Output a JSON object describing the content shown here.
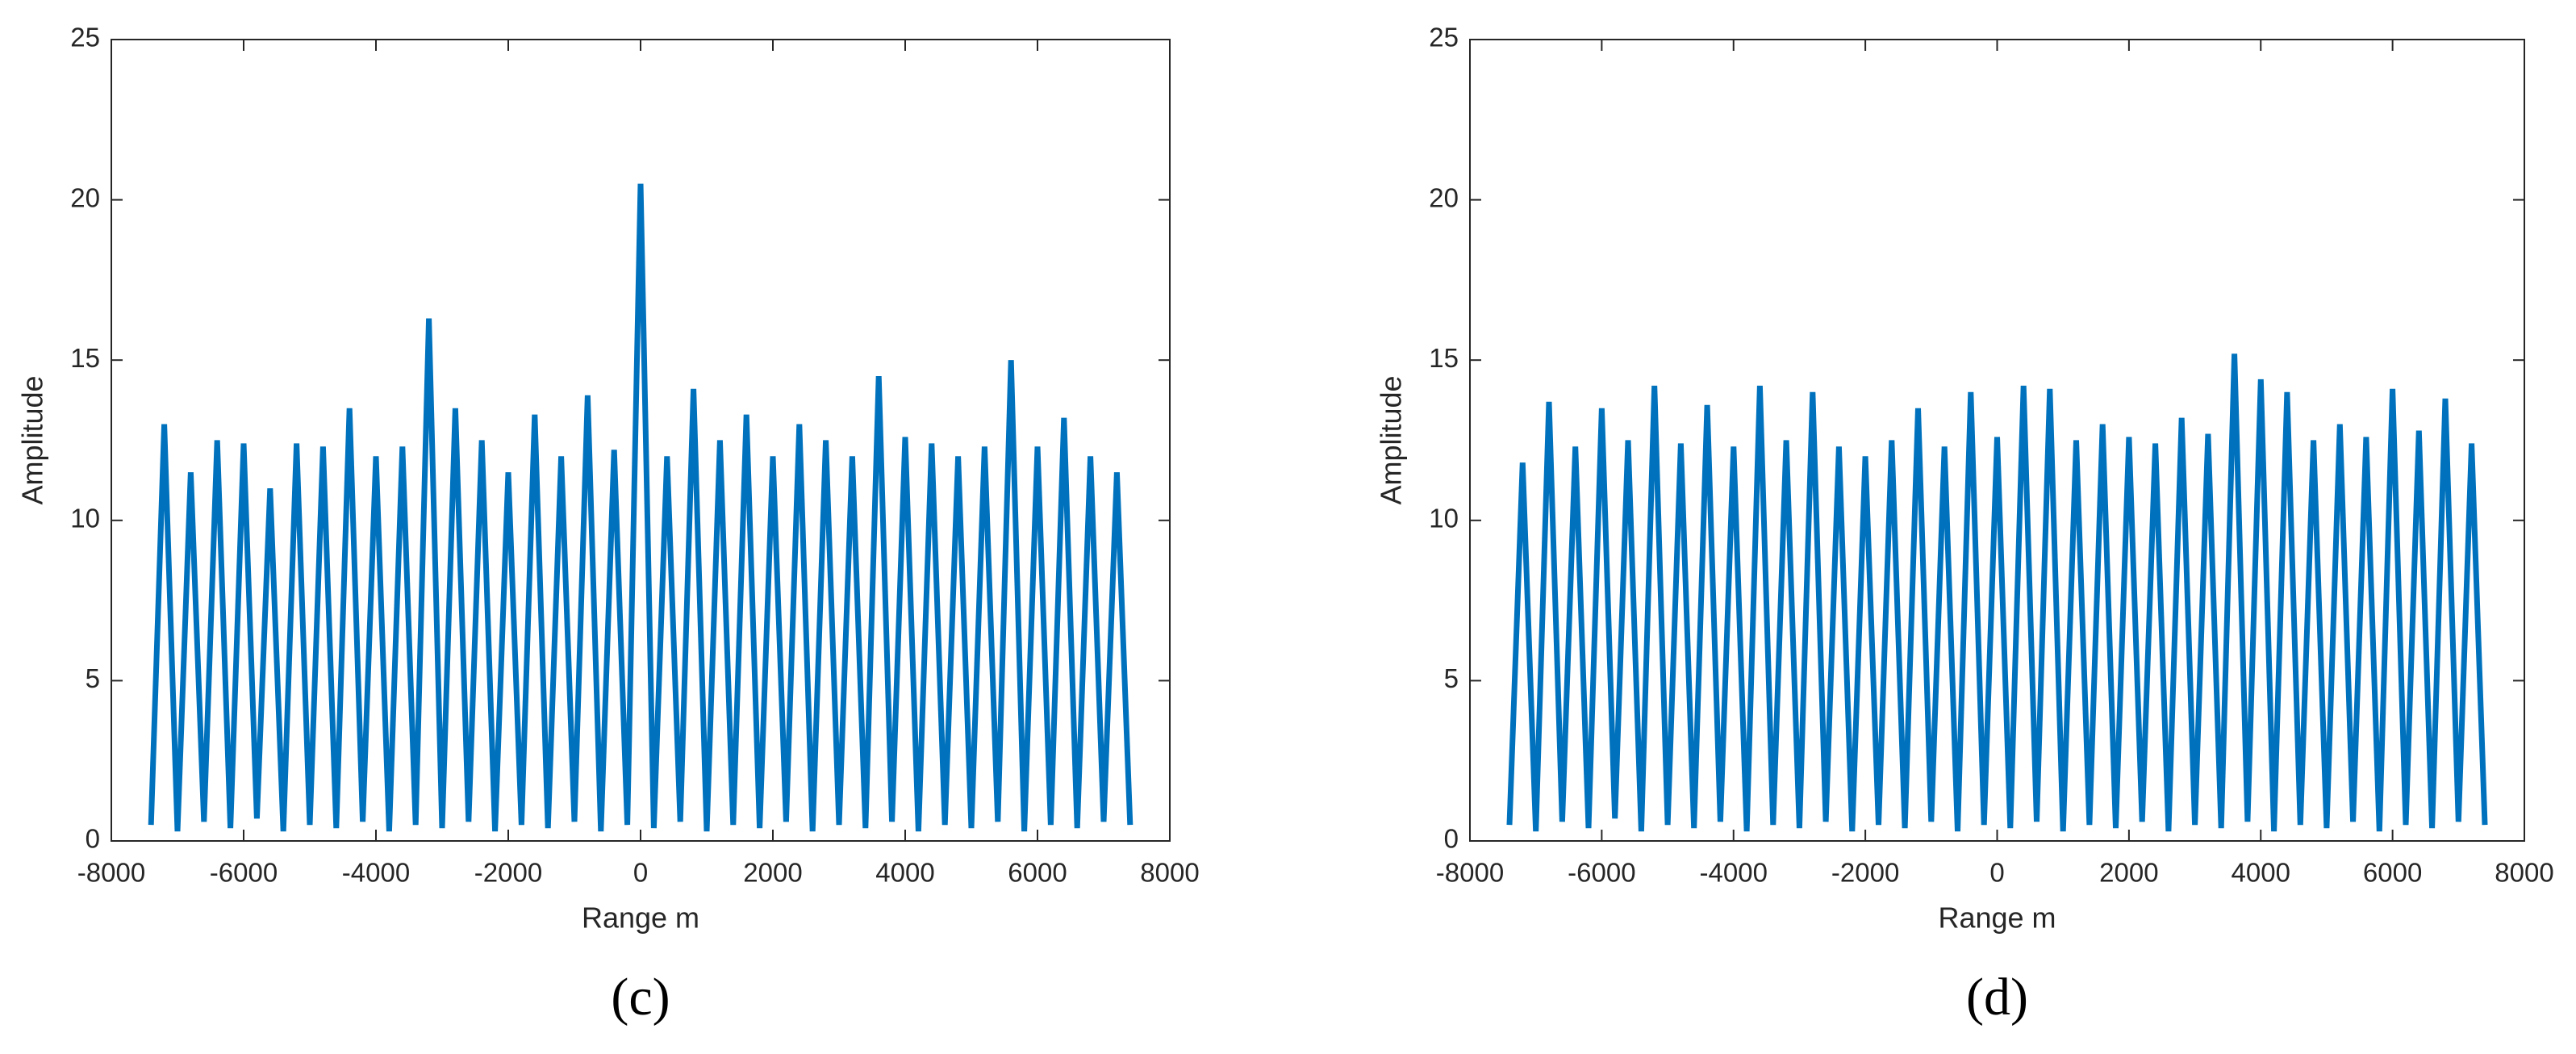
{
  "chart_data": [
    {
      "type": "line",
      "panel_label": "(c)",
      "x_label": "Range m",
      "y_label": "Amplitude",
      "xlim": [
        -8000,
        8000
      ],
      "xticks": [
        -8000,
        -6000,
        -4000,
        -2000,
        0,
        2000,
        4000,
        6000,
        8000
      ],
      "ylim": [
        0,
        25
      ],
      "yticks": [
        0,
        5,
        10,
        15,
        20,
        25
      ],
      "color": "#0072bd",
      "x": [
        -7400,
        -7200,
        -7000,
        -6800,
        -6600,
        -6400,
        -6200,
        -6000,
        -5800,
        -5600,
        -5400,
        -5200,
        -5000,
        -4800,
        -4600,
        -4400,
        -4200,
        -4000,
        -3800,
        -3600,
        -3400,
        -3200,
        -3000,
        -2800,
        -2600,
        -2400,
        -2200,
        -2000,
        -1800,
        -1600,
        -1400,
        -1200,
        -1000,
        -800,
        -600,
        -400,
        -200,
        0,
        200,
        400,
        600,
        800,
        1000,
        1200,
        1400,
        1600,
        1800,
        2000,
        2200,
        2400,
        2600,
        2800,
        3000,
        3200,
        3400,
        3600,
        3800,
        4000,
        4200,
        4400,
        4600,
        4800,
        5000,
        5200,
        5400,
        5600,
        5800,
        6000,
        6200,
        6400,
        6600,
        6800,
        7000,
        7200,
        7400
      ],
      "values": [
        0.5,
        13.0,
        0.3,
        11.5,
        0.6,
        12.5,
        0.4,
        12.4,
        0.7,
        11.0,
        0.3,
        12.4,
        0.5,
        12.3,
        0.4,
        13.5,
        0.6,
        12.0,
        0.3,
        12.3,
        0.5,
        16.3,
        0.4,
        13.5,
        0.6,
        12.5,
        0.3,
        11.5,
        0.5,
        13.3,
        0.4,
        12.0,
        0.6,
        13.9,
        0.3,
        12.2,
        0.5,
        20.5,
        0.4,
        12.0,
        0.6,
        14.1,
        0.3,
        12.5,
        0.5,
        13.3,
        0.4,
        12.0,
        0.6,
        13.0,
        0.3,
        12.5,
        0.5,
        12.0,
        0.4,
        14.5,
        0.6,
        12.6,
        0.3,
        12.4,
        0.5,
        12.0,
        0.4,
        12.3,
        0.6,
        15.0,
        0.3,
        12.3,
        0.5,
        13.2,
        0.4,
        12.0,
        0.6,
        11.5,
        0.5
      ]
    },
    {
      "type": "line",
      "panel_label": "(d)",
      "x_label": "Range m",
      "y_label": "Amplitude",
      "xlim": [
        -8000,
        8000
      ],
      "xticks": [
        -8000,
        -6000,
        -4000,
        -2000,
        0,
        2000,
        4000,
        6000,
        8000
      ],
      "ylim": [
        0,
        25
      ],
      "yticks": [
        0,
        5,
        10,
        15,
        20,
        25
      ],
      "color": "#0072bd",
      "x": [
        -7400,
        -7200,
        -7000,
        -6800,
        -6600,
        -6400,
        -6200,
        -6000,
        -5800,
        -5600,
        -5400,
        -5200,
        -5000,
        -4800,
        -4600,
        -4400,
        -4200,
        -4000,
        -3800,
        -3600,
        -3400,
        -3200,
        -3000,
        -2800,
        -2600,
        -2400,
        -2200,
        -2000,
        -1800,
        -1600,
        -1400,
        -1200,
        -1000,
        -800,
        -600,
        -400,
        -200,
        0,
        200,
        400,
        600,
        800,
        1000,
        1200,
        1400,
        1600,
        1800,
        2000,
        2200,
        2400,
        2600,
        2800,
        3000,
        3200,
        3400,
        3600,
        3800,
        4000,
        4200,
        4400,
        4600,
        4800,
        5000,
        5200,
        5400,
        5600,
        5800,
        6000,
        6200,
        6400,
        6600,
        6800,
        7000,
        7200,
        7400
      ],
      "values": [
        0.5,
        11.8,
        0.3,
        13.7,
        0.6,
        12.3,
        0.4,
        13.5,
        0.7,
        12.5,
        0.3,
        14.2,
        0.5,
        12.4,
        0.4,
        13.6,
        0.6,
        12.3,
        0.3,
        14.2,
        0.5,
        12.5,
        0.4,
        14.0,
        0.6,
        12.3,
        0.3,
        12.0,
        0.5,
        12.5,
        0.4,
        13.5,
        0.6,
        12.3,
        0.3,
        14.0,
        0.5,
        12.6,
        0.4,
        14.2,
        0.6,
        14.1,
        0.3,
        12.5,
        0.5,
        13.0,
        0.4,
        12.6,
        0.6,
        12.4,
        0.3,
        13.2,
        0.5,
        12.7,
        0.4,
        15.2,
        0.6,
        14.4,
        0.3,
        14.0,
        0.5,
        12.5,
        0.4,
        13.0,
        0.6,
        12.6,
        0.3,
        14.1,
        0.5,
        12.8,
        0.4,
        13.8,
        0.6,
        12.4,
        0.5
      ]
    }
  ]
}
